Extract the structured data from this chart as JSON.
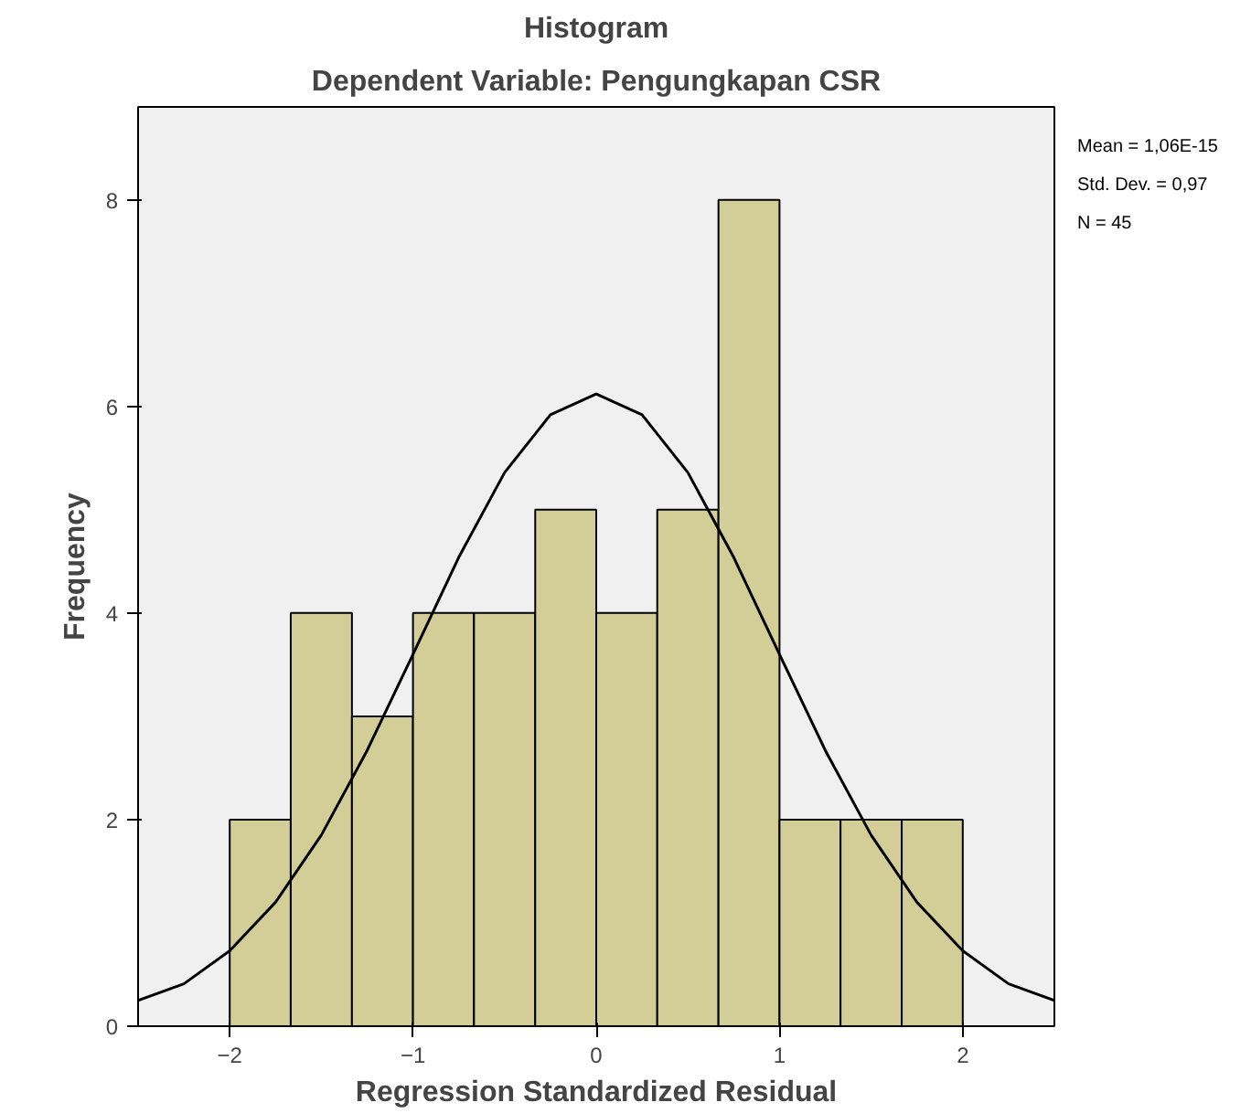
{
  "chart_data": {
    "type": "histogram",
    "title": "Histogram",
    "subtitle": "Dependent Variable: Pengungkapan CSR",
    "xlabel": "Regression Standardized Residual",
    "ylabel": "Frequency",
    "bins": [
      -2,
      -1.667,
      -1.333,
      -1,
      -0.667,
      -0.333,
      0,
      0.333,
      0.667,
      1,
      1.333,
      1.667,
      2
    ],
    "values": [
      2,
      4,
      3,
      4,
      4,
      5,
      4,
      5,
      8,
      2,
      2,
      2
    ],
    "color": "#d3ce97",
    "series": [
      {
        "type": "line",
        "color": "#000000",
        "x": [
          -2.5,
          -2.25,
          -2,
          -1.75,
          -1.5,
          -1.25,
          -1,
          -0.75,
          -0.5,
          -0.25,
          0,
          0.25,
          0.5,
          0.75,
          1,
          1.25,
          1.5,
          1.75,
          2,
          2.25,
          2.5
        ],
        "values": [
          0.25,
          0.41,
          0.73,
          1.2,
          1.85,
          2.67,
          3.6,
          4.54,
          5.36,
          5.92,
          6.12,
          5.92,
          5.36,
          4.54,
          3.6,
          2.67,
          1.85,
          1.2,
          0.73,
          0.41,
          0.25
        ]
      }
    ],
    "xlim": [
      -2.5,
      2.5
    ],
    "xticks": [
      -2,
      -1,
      0,
      1,
      2
    ],
    "ylim": [
      0,
      8.9
    ],
    "yticks": [
      0,
      2,
      4,
      6,
      8
    ],
    "grid": false,
    "annotations": [
      "Mean = 1,06E-15",
      "Std. Dev. = 0,97",
      "N = 45"
    ]
  }
}
